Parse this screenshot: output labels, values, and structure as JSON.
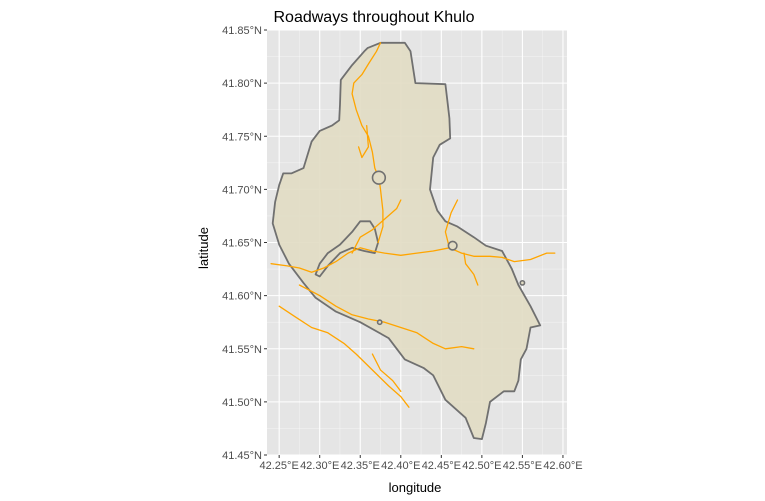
{
  "chart_data": {
    "type": "map",
    "title": "Roadways throughout Khulo",
    "xlabel": "longitude",
    "ylabel": "latitude",
    "xlim": [
      42.235,
      42.605
    ],
    "ylim": [
      41.45,
      41.85
    ],
    "x_ticks": [
      42.25,
      42.3,
      42.35,
      42.4,
      42.45,
      42.5,
      42.55,
      42.6
    ],
    "x_tick_labels": [
      "42.25°E",
      "42.30°E",
      "42.35°E",
      "42.40°E",
      "42.45°E",
      "42.50°E",
      "42.55°E",
      "42.60°E"
    ],
    "y_ticks": [
      41.45,
      41.5,
      41.55,
      41.6,
      41.65,
      41.7,
      41.75,
      41.8,
      41.85
    ],
    "y_tick_labels": [
      "41.45°N",
      "41.50°N",
      "41.55°N",
      "41.60°N",
      "41.65°N",
      "41.70°N",
      "41.75°N",
      "41.80°N",
      "41.85°N"
    ],
    "grid": true,
    "colors": {
      "panel_background": "#e5e5e5",
      "grid": "#ffffff",
      "boundary_fill": "#e2dcc4",
      "boundary_stroke": "#707070",
      "roads": "#ffa500"
    },
    "boundary": [
      [
        42.359,
        41.833
      ],
      [
        42.375,
        41.838
      ],
      [
        42.405,
        41.838
      ],
      [
        42.412,
        41.83
      ],
      [
        42.418,
        41.8
      ],
      [
        42.455,
        41.799
      ],
      [
        42.458,
        41.78
      ],
      [
        42.46,
        41.767
      ],
      [
        42.461,
        41.748
      ],
      [
        42.448,
        41.742
      ],
      [
        42.44,
        41.73
      ],
      [
        42.436,
        41.7
      ],
      [
        42.445,
        41.68
      ],
      [
        42.455,
        41.67
      ],
      [
        42.47,
        41.665
      ],
      [
        42.49,
        41.655
      ],
      [
        42.505,
        41.647
      ],
      [
        42.525,
        41.642
      ],
      [
        42.537,
        41.625
      ],
      [
        42.545,
        41.61
      ],
      [
        42.56,
        41.59
      ],
      [
        42.572,
        41.572
      ],
      [
        42.56,
        41.57
      ],
      [
        42.555,
        41.55
      ],
      [
        42.548,
        41.54
      ],
      [
        42.545,
        41.52
      ],
      [
        42.54,
        41.51
      ],
      [
        42.527,
        41.51
      ],
      [
        42.51,
        41.5
      ],
      [
        42.505,
        41.48
      ],
      [
        42.5,
        41.465
      ],
      [
        42.49,
        41.466
      ],
      [
        42.48,
        41.485
      ],
      [
        42.455,
        41.502
      ],
      [
        42.44,
        41.525
      ],
      [
        42.428,
        41.532
      ],
      [
        42.405,
        41.54
      ],
      [
        42.385,
        41.56
      ],
      [
        42.35,
        41.575
      ],
      [
        42.32,
        41.585
      ],
      [
        42.295,
        41.598
      ],
      [
        42.28,
        41.612
      ],
      [
        42.262,
        41.63
      ],
      [
        42.25,
        41.648
      ],
      [
        42.242,
        41.668
      ],
      [
        42.245,
        41.688
      ],
      [
        42.25,
        41.704
      ],
      [
        42.255,
        41.715
      ],
      [
        42.265,
        41.715
      ],
      [
        42.28,
        41.72
      ],
      [
        42.29,
        41.745
      ],
      [
        42.3,
        41.755
      ],
      [
        42.315,
        41.76
      ],
      [
        42.324,
        41.765
      ],
      [
        42.325,
        41.78
      ],
      [
        42.326,
        41.803
      ],
      [
        42.34,
        41.817
      ],
      [
        42.355,
        41.83
      ],
      [
        42.359,
        41.833
      ]
    ],
    "inner_boundary": [
      [
        42.295,
        41.62
      ],
      [
        42.3,
        41.63
      ],
      [
        42.31,
        41.64
      ],
      [
        42.325,
        41.648
      ],
      [
        42.34,
        41.66
      ],
      [
        42.35,
        41.67
      ],
      [
        42.362,
        41.67
      ],
      [
        42.368,
        41.663
      ],
      [
        42.372,
        41.65
      ],
      [
        42.368,
        41.64
      ],
      [
        42.355,
        41.642
      ],
      [
        42.34,
        41.645
      ],
      [
        42.325,
        41.64
      ],
      [
        42.31,
        41.628
      ],
      [
        42.3,
        41.618
      ],
      [
        42.295,
        41.62
      ]
    ],
    "rings": [
      {
        "lon": 42.373,
        "lat": 41.711,
        "r": 0.006
      },
      {
        "lon": 42.464,
        "lat": 41.647,
        "r": 0.004
      },
      {
        "lon": 42.55,
        "lat": 41.612,
        "r": 0.002
      },
      {
        "lon": 42.374,
        "lat": 41.575,
        "r": 0.002
      }
    ],
    "roads": [
      [
        [
          42.24,
          41.63
        ],
        [
          42.26,
          41.628
        ],
        [
          42.275,
          41.626
        ],
        [
          42.29,
          41.622
        ],
        [
          42.305,
          41.626
        ],
        [
          42.32,
          41.632
        ],
        [
          42.335,
          41.64
        ],
        [
          42.35,
          41.645
        ],
        [
          42.365,
          41.642
        ],
        [
          42.38,
          41.64
        ],
        [
          42.4,
          41.638
        ],
        [
          42.42,
          41.64
        ],
        [
          42.44,
          41.642
        ],
        [
          42.46,
          41.645
        ],
        [
          42.475,
          41.64
        ],
        [
          42.49,
          41.637
        ],
        [
          42.51,
          41.637
        ],
        [
          42.525,
          41.636
        ],
        [
          42.54,
          41.632
        ],
        [
          42.56,
          41.634
        ],
        [
          42.58,
          41.64
        ],
        [
          42.59,
          41.64
        ]
      ],
      [
        [
          42.34,
          41.64
        ],
        [
          42.35,
          41.655
        ],
        [
          42.365,
          41.662
        ],
        [
          42.38,
          41.672
        ],
        [
          42.395,
          41.682
        ],
        [
          42.4,
          41.69
        ]
      ],
      [
        [
          42.372,
          41.65
        ],
        [
          42.378,
          41.665
        ],
        [
          42.378,
          41.68
        ],
        [
          42.375,
          41.7
        ],
        [
          42.373,
          41.711
        ]
      ],
      [
        [
          42.373,
          41.711
        ],
        [
          42.368,
          41.72
        ],
        [
          42.365,
          41.735
        ],
        [
          42.36,
          41.75
        ],
        [
          42.352,
          41.76
        ],
        [
          42.345,
          41.775
        ],
        [
          42.34,
          41.79
        ],
        [
          42.342,
          41.8
        ],
        [
          42.352,
          41.808
        ],
        [
          42.36,
          41.818
        ],
        [
          42.37,
          41.83
        ],
        [
          42.375,
          41.838
        ]
      ],
      [
        [
          42.358,
          41.76
        ],
        [
          42.36,
          41.74
        ],
        [
          42.352,
          41.73
        ],
        [
          42.348,
          41.74
        ]
      ],
      [
        [
          42.46,
          41.645
        ],
        [
          42.455,
          41.66
        ],
        [
          42.462,
          41.678
        ],
        [
          42.47,
          41.69
        ]
      ],
      [
        [
          42.478,
          41.64
        ],
        [
          42.48,
          41.63
        ],
        [
          42.49,
          41.62
        ],
        [
          42.495,
          41.61
        ]
      ],
      [
        [
          42.275,
          41.61
        ],
        [
          42.3,
          41.6
        ],
        [
          42.32,
          41.59
        ],
        [
          42.34,
          41.582
        ],
        [
          42.36,
          41.578
        ],
        [
          42.38,
          41.575
        ],
        [
          42.4,
          41.57
        ],
        [
          42.42,
          41.565
        ],
        [
          42.44,
          41.555
        ],
        [
          42.455,
          41.55
        ],
        [
          42.475,
          41.552
        ],
        [
          42.49,
          41.55
        ]
      ],
      [
        [
          42.25,
          41.59
        ],
        [
          42.27,
          41.58
        ],
        [
          42.29,
          41.57
        ],
        [
          42.31,
          41.565
        ],
        [
          42.33,
          41.555
        ],
        [
          42.345,
          41.545
        ],
        [
          42.365,
          41.53
        ],
        [
          42.385,
          41.515
        ],
        [
          42.4,
          41.505
        ],
        [
          42.41,
          41.495
        ]
      ],
      [
        [
          42.365,
          41.545
        ],
        [
          42.375,
          41.53
        ],
        [
          42.39,
          41.52
        ],
        [
          42.4,
          41.51
        ]
      ]
    ]
  }
}
